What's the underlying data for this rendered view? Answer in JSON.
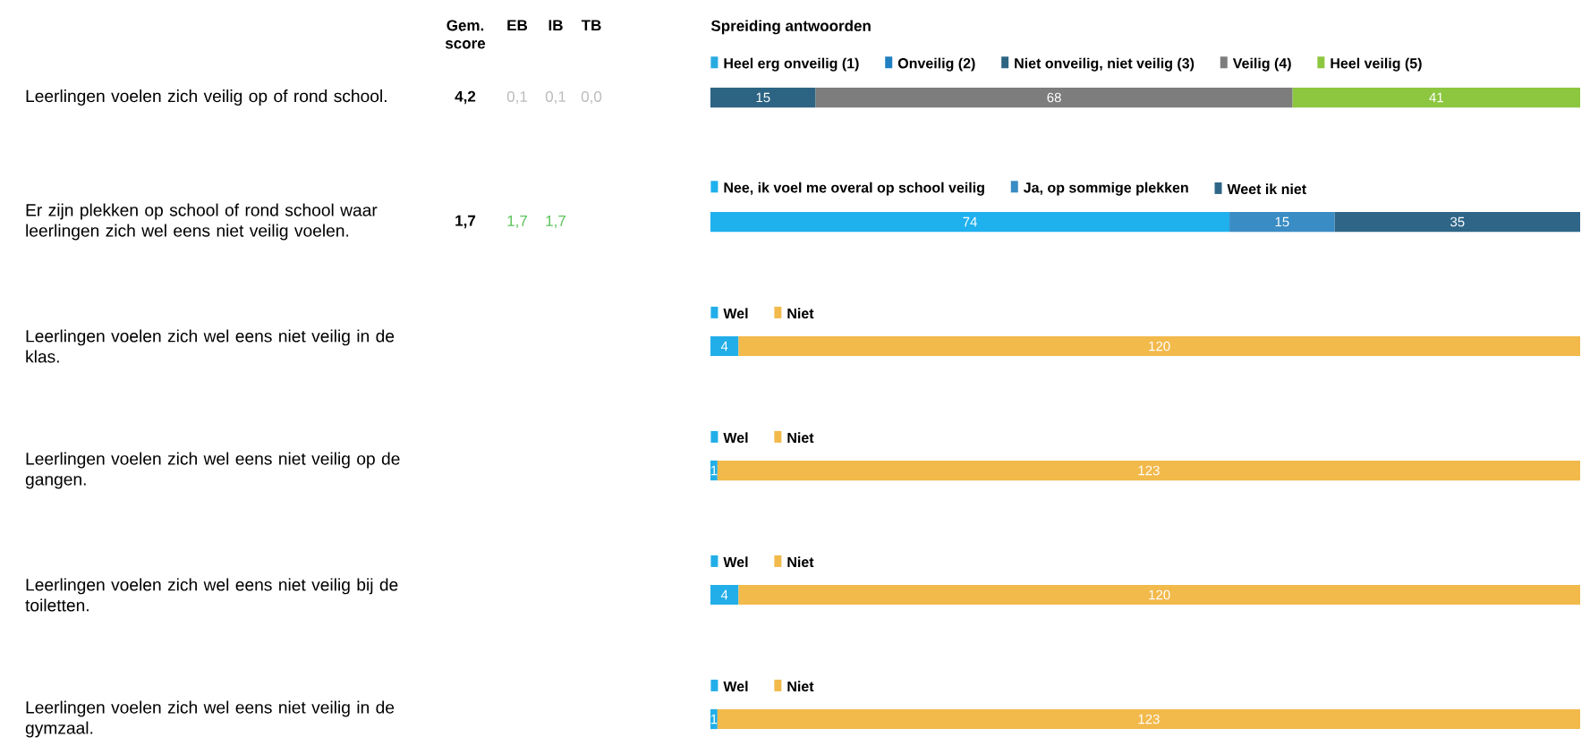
{
  "chart_data": {
    "type": "bar",
    "orientation": "horizontal",
    "stacked": true,
    "legend": "top",
    "categories": [
      "Leerlingen voelen zich veilig op of rond school.",
      "Er zijn plekken op school of rond school waar leerlingen zich wel eens niet veilig voelen.",
      "Leerlingen voelen zich wel eens niet veilig in de klas.",
      "Leerlingen voelen zich wel eens niet veilig op de gangen.",
      "Leerlingen voelen zich wel eens niet veilig bij de toiletten.",
      "Leerlingen voelen zich wel eens niet veilig in de gymzaal."
    ],
    "series": [
      {
        "name": "Heel erg onveilig (1)",
        "color": "#29abe2",
        "values": [
          0,
          null,
          null,
          null,
          null,
          null
        ],
        "value_labels": [
          null,
          null,
          null,
          null,
          null,
          null
        ]
      },
      {
        "name": "Onveilig (2)",
        "color": "#1f7fc0",
        "values": [
          0,
          null,
          null,
          null,
          null,
          null
        ],
        "value_labels": [
          null,
          null,
          null,
          null,
          null,
          null
        ]
      },
      {
        "name": "Niet onveilig, niet veilig (3)",
        "color": "#2d6483",
        "values": [
          15,
          null,
          null,
          null,
          null,
          null
        ],
        "value_labels": [
          "15",
          null,
          null,
          null,
          null,
          null
        ]
      },
      {
        "name": "Veilig (4)",
        "color": "#7d7d7d",
        "values": [
          68,
          null,
          null,
          null,
          null,
          null
        ],
        "value_labels": [
          "68",
          null,
          null,
          null,
          null,
          null
        ]
      },
      {
        "name": "Heel veilig (5)",
        "color": "#8dc63f",
        "values": [
          41,
          null,
          null,
          null,
          null,
          null
        ],
        "value_labels": [
          "41",
          null,
          null,
          null,
          null,
          null
        ]
      },
      {
        "name": "Nee, ik voel me overal op school veilig",
        "color": "#1fb0ee",
        "values": [
          null,
          74,
          null,
          null,
          null,
          null
        ],
        "value_labels": [
          null,
          "74",
          null,
          null,
          null,
          null
        ]
      },
      {
        "name": "Ja, op sommige plekken",
        "color": "#3a8cc4",
        "values": [
          null,
          15,
          null,
          null,
          null,
          null
        ],
        "value_labels": [
          null,
          "15",
          null,
          null,
          null,
          null
        ]
      },
      {
        "name": "Weet ik niet",
        "color": "#2f6688",
        "values": [
          null,
          35,
          null,
          null,
          null,
          null
        ],
        "value_labels": [
          null,
          "35",
          null,
          null,
          null,
          null
        ]
      },
      {
        "name": "Wel",
        "color": "#22aee8",
        "values": [
          null,
          null,
          4,
          1,
          4,
          1
        ],
        "value_labels": [
          null,
          null,
          "4",
          "1",
          "4",
          "1"
        ]
      },
      {
        "name": "Niet",
        "color": "#f2b94b",
        "values": [
          null,
          null,
          120,
          123,
          120,
          123
        ],
        "value_labels": [
          null,
          null,
          "120",
          "123",
          "120",
          "123"
        ]
      }
    ],
    "annotations": [
      "Gem. score",
      "EB",
      "IB",
      "TB",
      "Spreiding antwoorden",
      "4,2",
      "0,1",
      "0,1",
      "0,0",
      "1,7",
      "1,7",
      "1,7"
    ]
  }
}
